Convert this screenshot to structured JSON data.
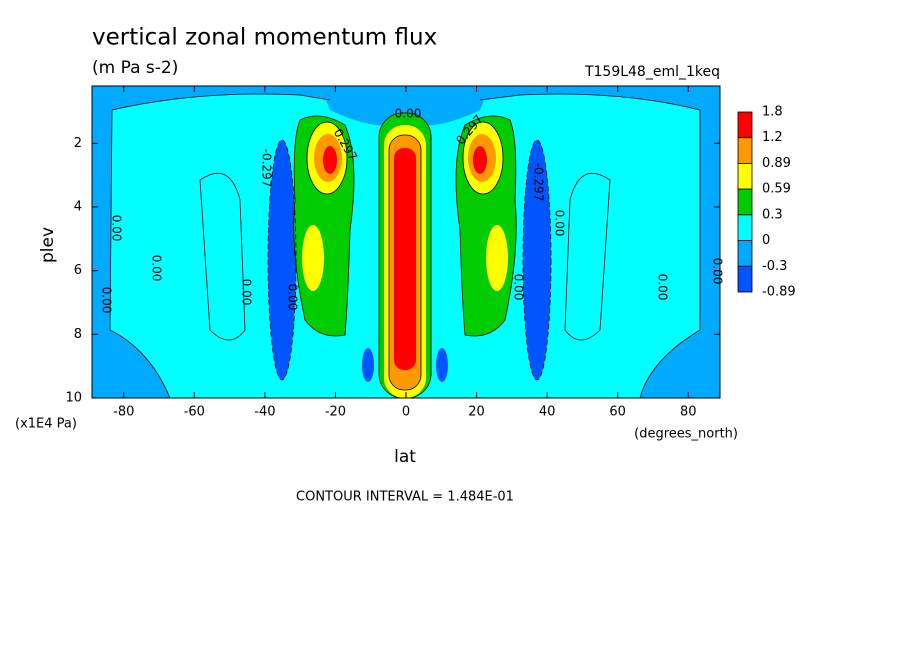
{
  "chart_data": {
    "type": "contour",
    "title": "vertical zonal momentum flux",
    "subtitle": "(m Pa s-2)",
    "run_label": "T159L48_eml_1keq",
    "xlabel": "lat",
    "x_units": "(degrees_north)",
    "ylabel": "plev",
    "y_units": "(x1E4 Pa)",
    "footnote": "CONTOUR INTERVAL = 1.484E-01",
    "xlim": [
      -89,
      89
    ],
    "xticks": [
      -80,
      -60,
      -40,
      -20,
      0,
      20,
      40,
      60,
      80
    ],
    "ylim": [
      0.2,
      10
    ],
    "yticks": [
      2,
      4,
      6,
      8,
      10
    ],
    "levels": [
      1.8,
      1.2,
      0.89,
      0.59,
      0.3,
      0,
      -0.3,
      -0.89
    ],
    "level_colors": [
      "#ff0000",
      "#ff9900",
      "#ffff00",
      "#00cc00",
      "#00ffff",
      "#00aaff",
      "#0055ff"
    ],
    "contour_labels": [
      {
        "value": 0,
        "label": "0.00"
      },
      0.297,
      0.297,
      -0.297,
      -0.297,
      {
        "value": 0,
        "label": "0.00"
      },
      {
        "value": 0,
        "label": "0.00"
      },
      {
        "value": 0,
        "label": "0.00"
      },
      {
        "value": 0,
        "label": "0.00"
      },
      {
        "value": 0,
        "label": "0.00"
      },
      {
        "value": 0,
        "label": "0.00"
      },
      {
        "value": 0,
        "label": "0.00"
      },
      {
        "value": 0,
        "label": "0.00"
      },
      {
        "value": 0,
        "label": "0.00"
      }
    ]
  }
}
